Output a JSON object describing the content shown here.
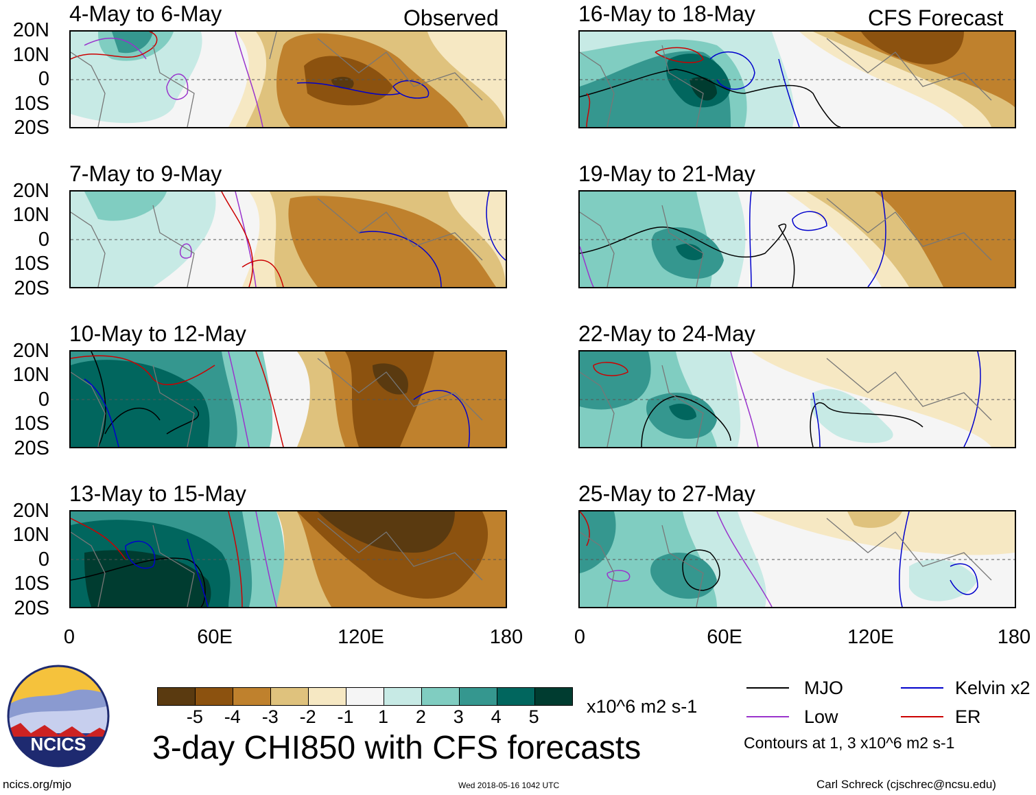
{
  "header": {
    "left_label": "Observed",
    "right_label": "CFS Forecast"
  },
  "panels": {
    "observed": [
      {
        "title": "4-May to 6-May"
      },
      {
        "title": "7-May to 9-May"
      },
      {
        "title": "10-May to 12-May"
      },
      {
        "title": "13-May to 15-May"
      }
    ],
    "forecast": [
      {
        "title": "16-May to 18-May"
      },
      {
        "title": "19-May to 21-May"
      },
      {
        "title": "22-May to 24-May"
      },
      {
        "title": "25-May to 27-May"
      }
    ]
  },
  "axes": {
    "lat_labels": [
      "20N",
      "10N",
      "0",
      "10S",
      "20S"
    ],
    "lon_labels": [
      "0",
      "60E",
      "120E",
      "180"
    ]
  },
  "colorbar": {
    "colors": [
      "#5a3a10",
      "#8c520f",
      "#bf812d",
      "#dfc27d",
      "#f6e8c3",
      "#f5f5f5",
      "#c7eae5",
      "#80cdc1",
      "#35978f",
      "#01665e",
      "#003c30"
    ],
    "ticks": [
      "-5",
      "-4",
      "-3",
      "-2",
      "-1",
      "1",
      "2",
      "3",
      "4",
      "5"
    ],
    "units": "x10^6 m2 s-1"
  },
  "legend": {
    "mjo": "MJO",
    "kelvin": "Kelvin x2",
    "low": "Low",
    "er": "ER",
    "colors": {
      "mjo": "#000000",
      "kelvin": "#0000cc",
      "low": "#9933cc",
      "er": "#cc0000"
    },
    "contour_note": "Contours at 1, 3 x10^6 m2 s-1"
  },
  "main_title": "3-day CHI850 with CFS forecasts",
  "footer": {
    "logo_text": "NCICS",
    "url": "ncics.org/mjo",
    "timestamp": "Wed 2018-05-16 1042 UTC",
    "credit": "Carl Schreck (cjschrec@ncsu.edu)"
  }
}
